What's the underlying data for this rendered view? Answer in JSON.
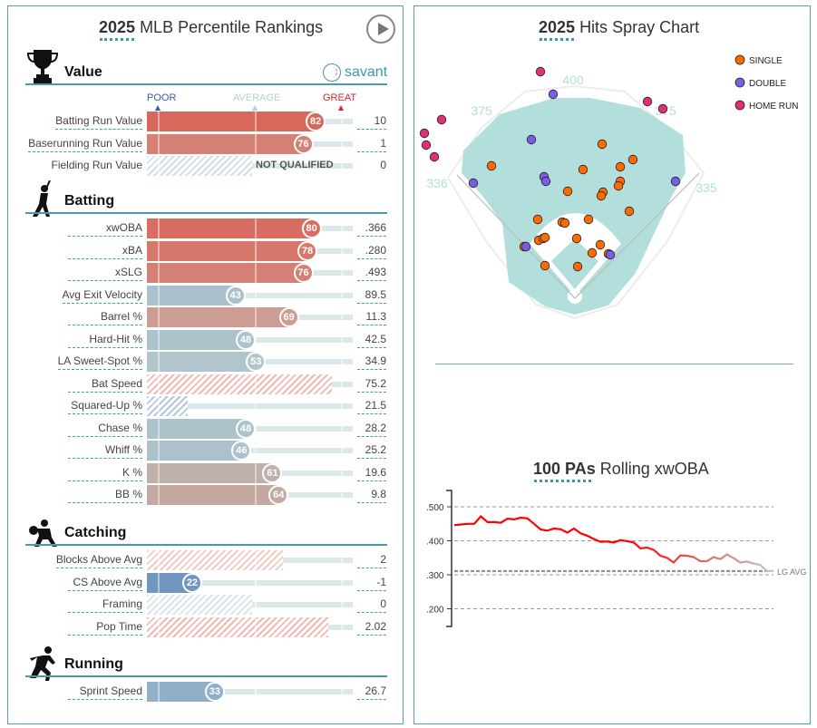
{
  "left_panel": {
    "title_bold": "2025",
    "title_rest": "MLB Percentile Rankings",
    "play_button": "play-icon",
    "brand": "savant",
    "scale": {
      "poor": "POOR",
      "average": "AVERAGE",
      "great": "GREAT"
    },
    "sections": [
      {
        "title": "Value",
        "icon": "trophy-icon",
        "rows": [
          {
            "label": "Batting Run Value",
            "percentile": 82,
            "value": "10",
            "qualified": true
          },
          {
            "label": "Baserunning Run Value",
            "percentile": 76,
            "value": "1",
            "qualified": true
          },
          {
            "label": "Fielding Run Value",
            "percentile": 51,
            "value": "0",
            "qualified": false,
            "note": "NOT QUALIFIED",
            "hatch": "#cfe0e4"
          }
        ]
      },
      {
        "title": "Batting",
        "icon": "batter-icon",
        "rows": [
          {
            "label": "xwOBA",
            "percentile": 80,
            "value": ".366",
            "qualified": true
          },
          {
            "label": "xBA",
            "percentile": 78,
            "value": ".280",
            "qualified": true
          },
          {
            "label": "xSLG",
            "percentile": 76,
            "value": ".493",
            "qualified": true
          },
          {
            "label": "Avg Exit Velocity",
            "percentile": 43,
            "value": "89.5",
            "qualified": true
          },
          {
            "label": "Barrel %",
            "percentile": 69,
            "value": "11.3",
            "qualified": true
          },
          {
            "label": "Hard-Hit %",
            "percentile": 48,
            "value": "42.5",
            "qualified": true
          },
          {
            "label": "LA Sweet-Spot %",
            "percentile": 53,
            "value": "34.9",
            "qualified": true
          },
          {
            "label": "Bat Speed",
            "percentile": 90,
            "value": "75.2",
            "qualified": false,
            "hatch": "#f2b8b3"
          },
          {
            "label": "Squared-Up %",
            "percentile": 20,
            "value": "21.5",
            "qualified": false,
            "hatch": "#b7c5e3"
          },
          {
            "label": "Chase %",
            "percentile": 48,
            "value": "28.2",
            "qualified": true
          },
          {
            "label": "Whiff %",
            "percentile": 46,
            "value": "25.2",
            "qualified": true
          },
          {
            "label": "K %",
            "percentile": 61,
            "value": "19.6",
            "qualified": true
          },
          {
            "label": "BB %",
            "percentile": 64,
            "value": "9.8",
            "qualified": true
          }
        ]
      },
      {
        "title": "Catching",
        "icon": "catcher-icon",
        "rows": [
          {
            "label": "Blocks Above Avg",
            "percentile": 66,
            "value": "2",
            "qualified": false,
            "hatch": "#f3c9c4"
          },
          {
            "label": "CS Above Avg",
            "percentile": 22,
            "value": "-1",
            "qualified": true
          },
          {
            "label": "Framing",
            "percentile": 51,
            "value": "0",
            "qualified": false,
            "hatch": "#d7e5e8"
          },
          {
            "label": "Pop Time",
            "percentile": 88,
            "value": "2.02",
            "qualified": false,
            "hatch": "#f2b8b3"
          }
        ]
      },
      {
        "title": "Running",
        "icon": "runner-icon",
        "rows": [
          {
            "label": "Sprint Speed",
            "percentile": 33,
            "value": "26.7",
            "qualified": true
          }
        ]
      }
    ]
  },
  "spray_chart": {
    "title_bold": "2025",
    "title_rest": "Hits Spray Chart",
    "distances": {
      "left_line": "336",
      "left_center": "375",
      "center": "400",
      "right_center": "375",
      "right_line": "335"
    },
    "legend": [
      {
        "label": "SINGLE",
        "color": "#ff6a00"
      },
      {
        "label": "DOUBLE",
        "color": "#7b5ce6"
      },
      {
        "label": "HOME RUN",
        "color": "#e0307a"
      }
    ]
  },
  "rolling": {
    "title_bold": "100 PAs",
    "title_rest": "Rolling xwOBA",
    "chart_data": {
      "type": "line",
      "ylabel": "",
      "ylim": [
        0.18,
        0.54
      ],
      "yticks": [
        ".500",
        ".400",
        ".300",
        ".200"
      ],
      "reference_line": {
        "label": "LG AVG",
        "value": 0.311
      },
      "grid": true,
      "series": [
        {
          "values": [
            0.446,
            0.448,
            0.45,
            0.45,
            0.472,
            0.455,
            0.455,
            0.453,
            0.465,
            0.463,
            0.468,
            0.466,
            0.45,
            0.433,
            0.43,
            0.436,
            0.434,
            0.424,
            0.436,
            0.422,
            0.415,
            0.405,
            0.397,
            0.398,
            0.395,
            0.402,
            0.399,
            0.395,
            0.378,
            0.38,
            0.373,
            0.356,
            0.35,
            0.336,
            0.357,
            0.356,
            0.352,
            0.34,
            0.34,
            0.352,
            0.346,
            0.36,
            0.349,
            0.336,
            0.339,
            0.333,
            0.329,
            0.311,
            0.311
          ],
          "colors": [
            "#ff0000",
            "#c8c8c8"
          ]
        }
      ]
    }
  }
}
